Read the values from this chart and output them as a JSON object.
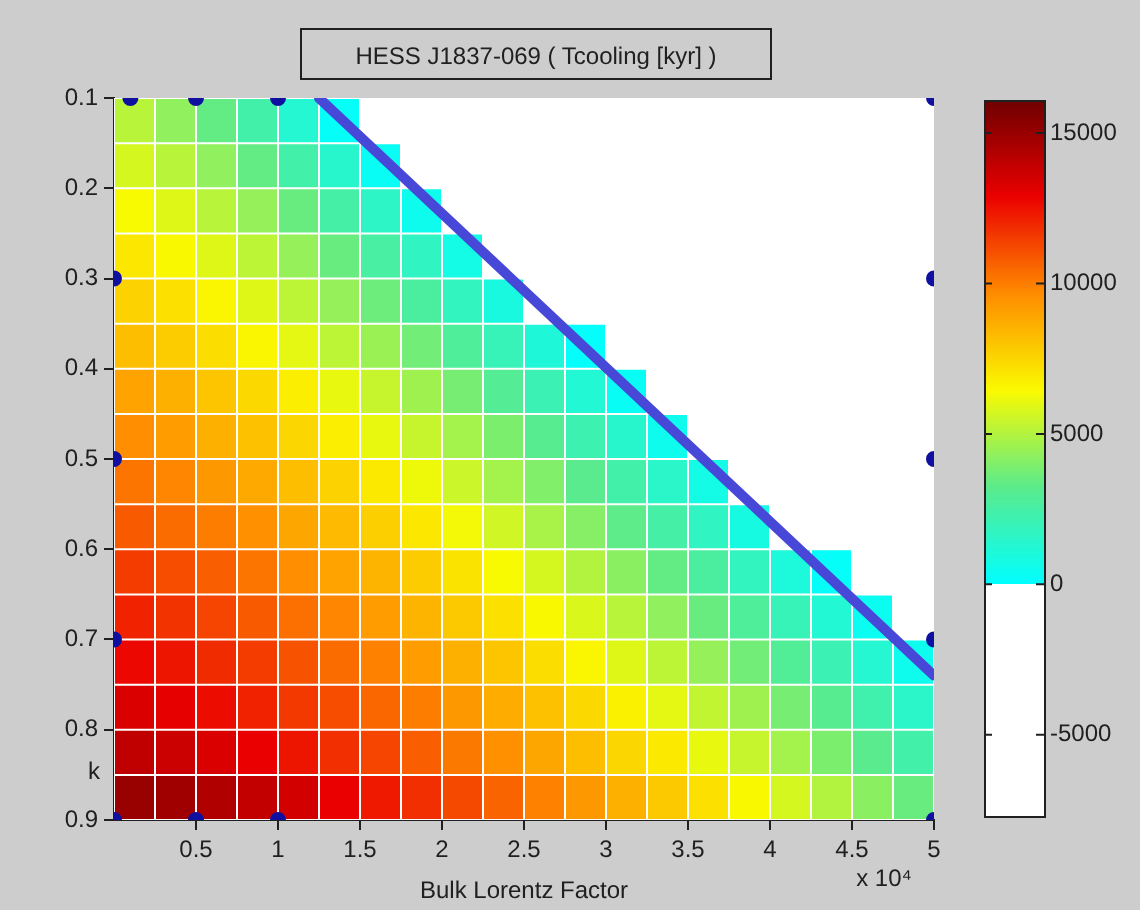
{
  "chart_data": {
    "type": "heatmap",
    "title": "HESS J1837-069 ( Tcooling [kyr] )",
    "xlabel": "Bulk Lorentz Factor",
    "ylabel": "k",
    "annotations": [
      "x 10⁴"
    ],
    "xlim": [
      0,
      5
    ],
    "ylim": [
      0.9,
      0.1
    ],
    "xticks": [
      0.5,
      1,
      1.5,
      2,
      2.5,
      3,
      3.5,
      4,
      4.5,
      5
    ],
    "yticks": [
      0.1,
      0.2,
      0.3,
      0.4,
      0.5,
      0.6,
      0.7,
      0.8,
      0.9
    ],
    "clim": [
      -7700,
      16100
    ],
    "cticks": [
      -5000,
      0,
      5000,
      10000,
      15000
    ],
    "cells": [
      [
        5100,
        4300,
        3400,
        2400,
        1300,
        200,
        null,
        null,
        null,
        null,
        null,
        null,
        null,
        null,
        null,
        null,
        null,
        null,
        null,
        null
      ],
      [
        5700,
        5100,
        4300,
        3400,
        2400,
        1400,
        300,
        null,
        null,
        null,
        null,
        null,
        null,
        null,
        null,
        null,
        null,
        null,
        null,
        null
      ],
      [
        6400,
        5900,
        5100,
        4400,
        3500,
        2500,
        1600,
        500,
        null,
        null,
        null,
        null,
        null,
        null,
        null,
        null,
        null,
        null,
        null,
        null
      ],
      [
        7000,
        6500,
        5900,
        5200,
        4400,
        3500,
        2600,
        1700,
        700,
        null,
        null,
        null,
        null,
        null,
        null,
        null,
        null,
        null,
        null,
        null
      ],
      [
        7600,
        7200,
        6600,
        5900,
        5200,
        4400,
        3600,
        2700,
        1800,
        900,
        null,
        null,
        null,
        null,
        null,
        null,
        null,
        null,
        null,
        null
      ],
      [
        8200,
        7800,
        7300,
        6600,
        6000,
        5200,
        4500,
        3700,
        2800,
        2000,
        1100,
        100,
        null,
        null,
        null,
        null,
        null,
        null,
        null,
        null
      ],
      [
        9000,
        8600,
        8000,
        7400,
        6800,
        6100,
        5400,
        4600,
        3800,
        3000,
        2100,
        1200,
        300,
        null,
        null,
        null,
        null,
        null,
        null,
        null
      ],
      [
        9600,
        9200,
        8600,
        8100,
        7500,
        6800,
        6100,
        5400,
        4700,
        3900,
        3100,
        2200,
        1400,
        500,
        null,
        null,
        null,
        null,
        null,
        null
      ],
      [
        10200,
        9800,
        9300,
        8800,
        8200,
        7600,
        6900,
        6200,
        5500,
        4700,
        4000,
        3200,
        2400,
        1500,
        700,
        null,
        null,
        null,
        null,
        null
      ],
      [
        10800,
        10400,
        10000,
        9500,
        8900,
        8300,
        7700,
        7000,
        6300,
        5600,
        4800,
        4100,
        3300,
        2500,
        1700,
        800,
        null,
        null,
        null,
        null
      ],
      [
        11500,
        11100,
        10700,
        10200,
        9600,
        9000,
        8500,
        7800,
        7100,
        6400,
        5700,
        5000,
        4200,
        3400,
        2700,
        1800,
        1000,
        200,
        null,
        null
      ],
      [
        12100,
        11700,
        11300,
        10800,
        10300,
        9800,
        9200,
        8500,
        7900,
        7200,
        6500,
        5800,
        5100,
        4300,
        3500,
        2800,
        2000,
        1200,
        400,
        null
      ],
      [
        12700,
        12400,
        11900,
        11500,
        11000,
        10400,
        9900,
        9200,
        8600,
        8000,
        7300,
        6600,
        5900,
        5200,
        4400,
        3700,
        2900,
        2100,
        1300,
        500
      ],
      [
        13300,
        13000,
        12600,
        12100,
        11600,
        11100,
        10500,
        10000,
        9300,
        8700,
        8100,
        7400,
        6700,
        6000,
        5300,
        4600,
        3800,
        3100,
        2300,
        1500
      ],
      [
        14000,
        13700,
        13300,
        12900,
        12400,
        11800,
        11300,
        10700,
        10100,
        9500,
        8900,
        8200,
        7500,
        6900,
        6100,
        5400,
        4700,
        3900,
        3200,
        2400
      ],
      [
        15000,
        14800,
        14400,
        13900,
        13500,
        12900,
        12300,
        11800,
        11200,
        10600,
        9900,
        9300,
        8600,
        7900,
        7200,
        6500,
        5700,
        5000,
        4200,
        3500
      ]
    ],
    "series": [
      {
        "type": "line",
        "color": "#4848d8",
        "marker": "none",
        "x": [
          1.25,
          5
        ],
        "values": [
          0.1,
          0.74
        ]
      },
      {
        "type": "scatter",
        "color": "#1010a0",
        "marker": "circle",
        "x": [
          0.1,
          0.5,
          1,
          0,
          0,
          0,
          0,
          0.5,
          1,
          5,
          5,
          5,
          5,
          5
        ],
        "values": [
          0.1,
          0.1,
          0.1,
          0.3,
          0.5,
          0.7,
          0.9,
          0.9,
          0.9,
          0.1,
          0.3,
          0.5,
          0.7,
          0.9
        ]
      }
    ]
  }
}
